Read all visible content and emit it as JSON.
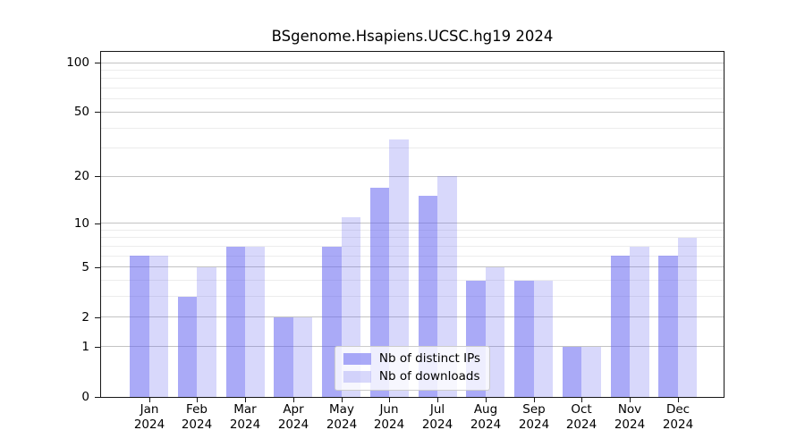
{
  "title": "BSgenome.Hsapiens.UCSC.hg19 2024",
  "legend": {
    "items": [
      {
        "label": "Nb of distinct IPs",
        "color": "#6464F08C"
      },
      {
        "label": "Nb of downloads",
        "color": "#6464F040"
      }
    ]
  },
  "axes": {
    "y_tick_labels": [
      "0",
      "1",
      "2",
      "5",
      "10",
      "20",
      "50",
      "100"
    ],
    "x_tick_year": "2024"
  },
  "chart_data": {
    "type": "bar",
    "title": "BSgenome.Hsapiens.UCSC.hg19 2024",
    "categories": [
      "Jan",
      "Feb",
      "Mar",
      "Apr",
      "May",
      "Jun",
      "Jul",
      "Aug",
      "Sep",
      "Oct",
      "Nov",
      "Dec"
    ],
    "category_year": "2024",
    "series": [
      {
        "name": "Nb of distinct IPs",
        "color": "#6464F08C",
        "values": [
          6,
          3,
          7,
          2,
          7,
          17,
          15,
          4,
          4,
          1,
          6,
          6
        ]
      },
      {
        "name": "Nb of downloads",
        "color": "#6464F040",
        "values": [
          6,
          5,
          7,
          2,
          11,
          34,
          20,
          5,
          4,
          1,
          7,
          8
        ]
      }
    ],
    "xlabel": "",
    "ylabel": "",
    "yscale": "log1p",
    "ylim": [
      0,
      115
    ],
    "yticks_major": [
      0,
      1,
      2,
      5,
      10,
      20,
      50,
      100
    ],
    "yticks_minor": [
      3,
      4,
      6,
      7,
      8,
      9,
      30,
      40,
      60,
      70,
      80,
      90
    ],
    "grid": true,
    "legend_position": "lower center",
    "colors": {
      "major_grid": "#c3c3c3",
      "minor_grid": "#ececec",
      "spine": "#161616"
    }
  }
}
